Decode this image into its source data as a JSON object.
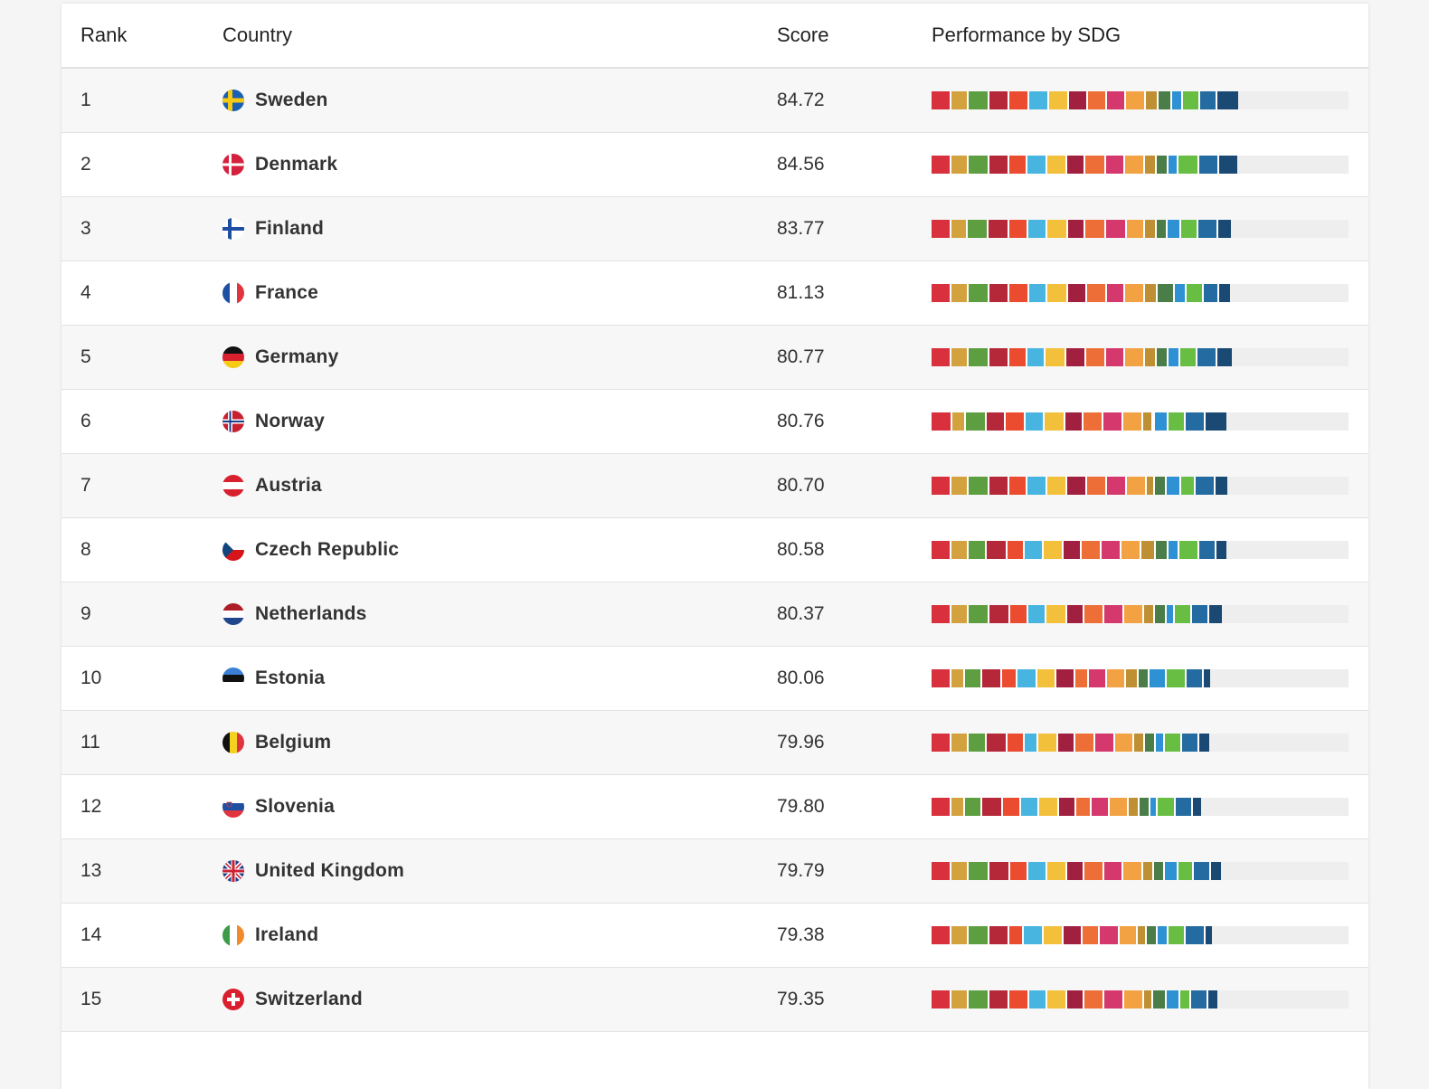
{
  "table": {
    "headers": {
      "rank": "Rank",
      "country": "Country",
      "score": "Score",
      "performance": "Performance by SDG"
    },
    "sdg_colors": [
      "#d8313d",
      "#d3a23e",
      "#5d9e40",
      "#b5283a",
      "#eb4b2f",
      "#47b5e0",
      "#f3c03b",
      "#a1203f",
      "#ee6e37",
      "#d5386d",
      "#f2a143",
      "#bf8f33",
      "#4a7d47",
      "#2d91d4",
      "#68be43",
      "#236ba0",
      "#1a4a73"
    ],
    "rows": [
      {
        "rank": "1",
        "country": "Sweden",
        "flag": "sweden",
        "score": "84.72",
        "sdg": [
          0.96,
          0.86,
          1.0,
          0.96,
          0.96,
          0.96,
          0.96,
          0.92,
          0.92,
          0.96,
          0.96,
          0.6,
          0.66,
          0.54,
          0.84,
          0.84,
          1.0
        ]
      },
      {
        "rank": "2",
        "country": "Denmark",
        "flag": "denmark",
        "score": "84.56",
        "sdg": [
          0.96,
          0.86,
          1.0,
          0.96,
          0.86,
          1.0,
          0.96,
          0.86,
          1.0,
          0.96,
          0.96,
          0.54,
          0.6,
          0.48,
          1.0,
          0.96,
          0.9
        ]
      },
      {
        "rank": "3",
        "country": "Finland",
        "flag": "finland",
        "score": "83.77",
        "sdg": [
          0.96,
          0.8,
          1.0,
          1.0,
          0.96,
          0.9,
          1.0,
          0.86,
          1.0,
          1.0,
          0.9,
          0.54,
          0.54,
          0.66,
          0.84,
          0.96,
          0.6
        ]
      },
      {
        "rank": "4",
        "country": "France",
        "flag": "france",
        "score": "81.13",
        "sdg": [
          0.96,
          0.86,
          1.0,
          0.96,
          0.96,
          0.9,
          1.0,
          0.9,
          0.96,
          0.9,
          0.96,
          0.6,
          0.84,
          0.6,
          0.84,
          0.72,
          0.54
        ]
      },
      {
        "rank": "5",
        "country": "Germany",
        "flag": "germany",
        "score": "80.77",
        "sdg": [
          0.96,
          0.86,
          1.0,
          0.96,
          0.86,
          0.9,
          1.0,
          0.96,
          0.96,
          0.96,
          0.96,
          0.54,
          0.6,
          0.54,
          0.84,
          0.96,
          0.72
        ]
      },
      {
        "rank": "6",
        "country": "Norway",
        "flag": "norway",
        "score": "80.76",
        "sdg": [
          1.0,
          0.66,
          1.0,
          0.96,
          0.96,
          0.9,
          1.0,
          0.9,
          0.96,
          0.96,
          0.96,
          0.48,
          0.12,
          0.66,
          0.84,
          0.96,
          1.0
        ]
      },
      {
        "rank": "7",
        "country": "Austria",
        "flag": "austria",
        "score": "80.70",
        "sdg": [
          0.96,
          0.86,
          1.0,
          0.96,
          0.86,
          1.0,
          0.96,
          0.96,
          0.96,
          0.96,
          0.96,
          0.42,
          0.54,
          0.72,
          0.72,
          0.96,
          0.54
        ]
      },
      {
        "rank": "8",
        "country": "Czech Republic",
        "flag": "czech",
        "score": "80.58",
        "sdg": [
          0.96,
          0.86,
          0.86,
          1.0,
          0.86,
          0.9,
          0.96,
          0.9,
          0.96,
          0.96,
          0.96,
          0.72,
          0.6,
          0.54,
          0.96,
          0.84,
          0.48
        ]
      },
      {
        "rank": "9",
        "country": "Netherlands",
        "flag": "netherlands",
        "score": "80.37",
        "sdg": [
          0.96,
          0.86,
          1.0,
          1.0,
          0.86,
          0.9,
          1.0,
          0.86,
          0.96,
          0.96,
          0.96,
          0.54,
          0.54,
          0.42,
          0.84,
          0.84,
          0.6
        ]
      },
      {
        "rank": "10",
        "country": "Estonia",
        "flag": "estonia",
        "score": "80.06",
        "sdg": [
          0.96,
          0.66,
          0.86,
          0.96,
          0.72,
          0.96,
          0.96,
          0.9,
          0.66,
          0.9,
          0.9,
          0.6,
          0.54,
          0.84,
          0.96,
          0.84,
          0.3
        ]
      },
      {
        "rank": "11",
        "country": "Belgium",
        "flag": "belgium",
        "score": "79.96",
        "sdg": [
          0.96,
          0.86,
          0.86,
          1.0,
          0.86,
          0.66,
          0.96,
          0.84,
          0.96,
          0.96,
          0.9,
          0.54,
          0.54,
          0.42,
          0.84,
          0.84,
          0.48
        ]
      },
      {
        "rank": "12",
        "country": "Slovenia",
        "flag": "slovenia",
        "score": "79.80",
        "sdg": [
          0.96,
          0.66,
          0.86,
          1.0,
          0.86,
          0.9,
          0.96,
          0.84,
          0.72,
          0.9,
          0.9,
          0.54,
          0.54,
          0.36,
          0.84,
          0.84,
          0.42
        ]
      },
      {
        "rank": "13",
        "country": "United Kingdom",
        "flag": "uk",
        "score": "79.79",
        "sdg": [
          0.96,
          0.86,
          1.0,
          1.0,
          0.86,
          0.96,
          0.96,
          0.84,
          0.96,
          0.9,
          0.96,
          0.54,
          0.54,
          0.66,
          0.72,
          0.84,
          0.48
        ]
      },
      {
        "rank": "14",
        "country": "Ireland",
        "flag": "ireland",
        "score": "79.38",
        "sdg": [
          0.96,
          0.86,
          1.0,
          0.96,
          0.72,
          0.96,
          0.96,
          0.9,
          0.84,
          0.96,
          0.9,
          0.42,
          0.54,
          0.54,
          0.84,
          0.96,
          0.3
        ]
      },
      {
        "rank": "15",
        "country": "Switzerland",
        "flag": "switzerland",
        "score": "79.35",
        "sdg": [
          0.96,
          0.86,
          1.0,
          0.96,
          0.96,
          0.9,
          0.96,
          0.84,
          0.96,
          0.96,
          0.96,
          0.42,
          0.66,
          0.66,
          0.54,
          0.84,
          0.42
        ]
      }
    ]
  }
}
